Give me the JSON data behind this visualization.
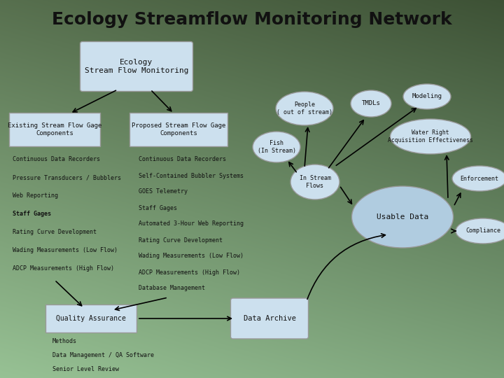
{
  "title": "Ecology Streamflow Monitoring Network",
  "title_fontsize": 18,
  "title_fontweight": "bold",
  "box_fill": "#cce0ee",
  "box_edge": "#999999",
  "ellipse_fill": "#cce0ee",
  "ellipse_edge": "#999999",
  "large_ellipse_fill": "#b0cce0",
  "text_color": "#111111",
  "bg_top": "#3d5c3a",
  "bg_bottom": "#8ab58a",
  "left_items": [
    "Continuous Data Recorders",
    "Pressure Transducers / Bubblers",
    "Web Reporting",
    "Staff Gages",
    "Rating Curve Development",
    "Wading Measurements (Low Flow)",
    "ADCP Measurements (High Flow)"
  ],
  "right_items": [
    "Continuous Data Recorders",
    "Self-Contained Bubbler Systems",
    "GOES Telemetry",
    "Staff Gages",
    "Automated 3-Hour Web Reporting",
    "Rating Curve Development",
    "Wading Measurements (Low Flow)",
    "ADCP Measurements (High Flow)",
    "Database Management"
  ],
  "bottom_items": [
    "Methods",
    "Data Management / QA Software",
    "Senior Level Review"
  ],
  "bold_item": "Staff Gages"
}
